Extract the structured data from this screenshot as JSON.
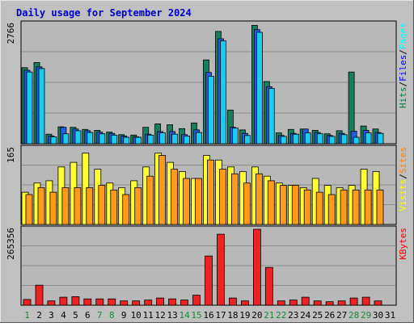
{
  "chart_data": {
    "type": "bar",
    "title": "Daily usage for September 2024",
    "categories": [
      "1",
      "2",
      "3",
      "4",
      "5",
      "6",
      "7",
      "8",
      "9",
      "10",
      "11",
      "12",
      "13",
      "14",
      "15",
      "16",
      "17",
      "18",
      "19",
      "20",
      "21",
      "22",
      "23",
      "24",
      "25",
      "26",
      "27",
      "28",
      "29",
      "30",
      "31"
    ],
    "weekend_days": [
      "1",
      "7",
      "8",
      "14",
      "15",
      "21",
      "22",
      "28",
      "29"
    ],
    "panels": [
      {
        "name": "hits-files-pages",
        "ymax_label": "2766",
        "ymax": 2766,
        "grid": true,
        "legend": [
          {
            "text": "Hits",
            "color": "#008040"
          },
          {
            "text": "/",
            "color": "#000000"
          },
          {
            "text": "Files",
            "color": "#0000ff"
          },
          {
            "text": "/",
            "color": "#000000"
          },
          {
            "text": "Pages",
            "color": "#00ffff"
          }
        ],
        "series": [
          {
            "name": "Hits",
            "color": "#15805f",
            "values": [
              1760,
              1880,
              220,
              390,
              380,
              330,
              310,
              270,
              210,
              200,
              380,
              460,
              440,
              350,
              480,
              1940,
              2600,
              780,
              320,
              2740,
              1440,
              250,
              330,
              340,
              310,
              230,
              300,
              1660,
              410,
              340,
              0
            ]
          },
          {
            "name": "Files",
            "color": "#1f5fe6",
            "values": [
              1700,
              1780,
              180,
              380,
              340,
              300,
              270,
              240,
              180,
              160,
              220,
              280,
              280,
              210,
              320,
              1650,
              2430,
              380,
              240,
              2640,
              1320,
              190,
              240,
              340,
              260,
              190,
              240,
              290,
              310,
              260,
              0
            ]
          },
          {
            "name": "Pages",
            "color": "#19ccf0",
            "values": [
              1660,
              1740,
              160,
              230,
              300,
              260,
              230,
              200,
              150,
              150,
              200,
              250,
              220,
              180,
              260,
              1560,
              2380,
              360,
              190,
              2580,
              1280,
              170,
              220,
              250,
              230,
              170,
              210,
              150,
              250,
              240,
              0
            ]
          }
        ]
      },
      {
        "name": "visits-sites",
        "ymax_label": "165",
        "ymax": 165,
        "grid": true,
        "legend": [
          {
            "text": "Visits",
            "color": "#ffff00"
          },
          {
            "text": "/",
            "color": "#000000"
          },
          {
            "text": "Sites",
            "color": "#ff8000"
          }
        ],
        "series": [
          {
            "name": "Visits",
            "color": "#ffff33",
            "values": [
              70,
              90,
              95,
              125,
              135,
              155,
              120,
              90,
              80,
              95,
              125,
              155,
              135,
              115,
              100,
              150,
              140,
              125,
              115,
              125,
              105,
              90,
              85,
              80,
              100,
              85,
              80,
              85,
              120,
              115,
              0
            ]
          },
          {
            "name": "Sites",
            "color": "#ff9a1a",
            "values": [
              65,
              80,
              70,
              80,
              80,
              80,
              85,
              75,
              65,
              80,
              105,
              150,
              120,
              100,
              100,
              140,
              120,
              110,
              90,
              110,
              95,
              85,
              85,
              75,
              70,
              65,
              75,
              75,
              75,
              75,
              0
            ]
          }
        ]
      },
      {
        "name": "kbytes",
        "ymax_label": "265356",
        "ymax": 265356,
        "grid": true,
        "legend": [
          {
            "text": "KBytes",
            "color": "#ff0000"
          }
        ],
        "series": [
          {
            "name": "KBytes",
            "color": "#ee2222",
            "values": [
              20000,
              70000,
              15000,
              28000,
              30000,
              22000,
              22000,
              22000,
              15000,
              15000,
              18000,
              25000,
              22000,
              18000,
              35000,
              172000,
              248000,
              25000,
              15000,
              265356,
              132000,
              15000,
              18000,
              28000,
              15000,
              12000,
              15000,
              25000,
              28000,
              15000,
              0
            ]
          }
        ]
      }
    ]
  }
}
